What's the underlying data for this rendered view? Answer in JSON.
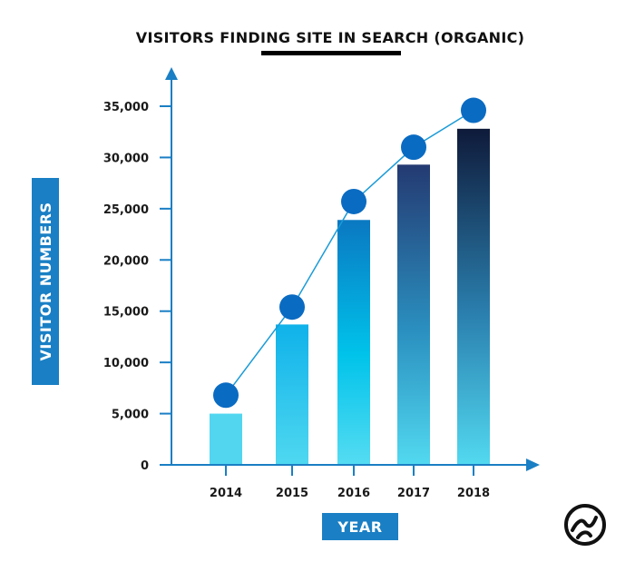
{
  "chart_data": {
    "type": "bar",
    "title": "VISITORS FINDING SITE IN SEARCH (ORGANIC)",
    "xlabel": "YEAR",
    "ylabel": "VISITOR NUMBERS",
    "categories": [
      "2014",
      "2015",
      "2016",
      "2017",
      "2018"
    ],
    "series": [
      {
        "type": "bar",
        "values": [
          5000,
          13700,
          23900,
          29300,
          32800
        ]
      },
      {
        "type": "line",
        "values": [
          6800,
          15400,
          25700,
          31000,
          34600
        ]
      }
    ],
    "ylim": [
      0,
      35000
    ],
    "yticks": [
      0,
      5000,
      10000,
      15000,
      20000,
      25000,
      30000,
      35000
    ],
    "ytick_labels": [
      "0",
      "5,000",
      "10,000",
      "15,000",
      "20,000",
      "25,000",
      "30,000",
      "35,000"
    ],
    "grid": false,
    "legend": "none",
    "colors": {
      "axis": "#1a7fc4",
      "label_badge": "#1a7fc4",
      "line": "#1a9bd7",
      "marker": "#0a6bc2",
      "title_underline": "#000000",
      "bars": [
        {
          "top": "#52d6f0",
          "bottom": "#52d6f0"
        },
        {
          "top": "#0fb2ea",
          "bottom": "#00d0ef",
          "end": "#4fd8f0"
        },
        {
          "top": "#0a78c2",
          "mid": "#00c3ea",
          "bottom": "#55dcf2"
        },
        {
          "top": "#243a72",
          "mid": "#2a8fbf",
          "bottom": "#52d9f0"
        },
        {
          "top": "#0f1a3a",
          "mid": "#2a7fae",
          "bottom": "#52d9f0"
        }
      ]
    }
  },
  "logo": {
    "icon": "swirl-logo-icon"
  }
}
